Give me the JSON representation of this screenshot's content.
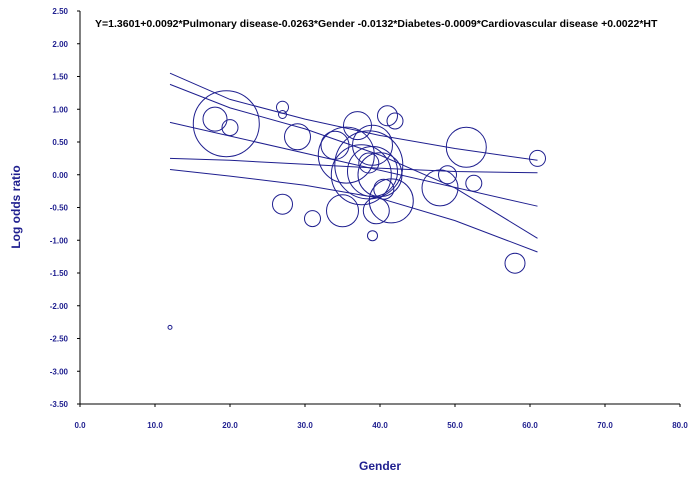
{
  "chart_data": {
    "type": "scatter",
    "title": "Y=1.3601+0.0092*Pulmonary disease-0.0263*Gender -0.0132*Diabetes-0.0009*Cardiovascular disease +0.0022*HT",
    "xlabel": "Gender",
    "ylabel": "Log odds ratio",
    "xlim": [
      0,
      80
    ],
    "ylim": [
      -3.5,
      2.5
    ],
    "x_ticks": [
      "0.0",
      "10.0",
      "20.0",
      "30.0",
      "40.0",
      "50.0",
      "60.0",
      "70.0",
      "80.0"
    ],
    "y_ticks": [
      "2.50",
      "2.00",
      "1.50",
      "1.00",
      "0.50",
      "0.00",
      "-0.50",
      "-1.00",
      "-1.50",
      "-2.00",
      "-2.50",
      "-3.00",
      "-3.50"
    ],
    "grid": false,
    "colors": {
      "marks": "#1f1f8f",
      "text": "#1f1f8f",
      "title": "#000000"
    },
    "points": [
      {
        "x": 19.5,
        "y": 0.78,
        "size": 33
      },
      {
        "x": 18.0,
        "y": 0.85,
        "size": 12
      },
      {
        "x": 20.0,
        "y": 0.72,
        "size": 8
      },
      {
        "x": 27.0,
        "y": 1.03,
        "size": 6
      },
      {
        "x": 27.0,
        "y": 0.92,
        "size": 4
      },
      {
        "x": 29.0,
        "y": 0.58,
        "size": 13
      },
      {
        "x": 27.0,
        "y": -0.45,
        "size": 10
      },
      {
        "x": 31.0,
        "y": -0.67,
        "size": 8
      },
      {
        "x": 34.0,
        "y": 0.45,
        "size": 14
      },
      {
        "x": 35.5,
        "y": 0.3,
        "size": 28
      },
      {
        "x": 35.0,
        "y": -0.55,
        "size": 16
      },
      {
        "x": 37.0,
        "y": 0.75,
        "size": 14
      },
      {
        "x": 37.5,
        "y": 0.0,
        "size": 30
      },
      {
        "x": 38.5,
        "y": 0.15,
        "size": 34
      },
      {
        "x": 39.0,
        "y": 0.05,
        "size": 25
      },
      {
        "x": 39.0,
        "y": 0.45,
        "size": 20
      },
      {
        "x": 40.0,
        "y": 0.0,
        "size": 22
      },
      {
        "x": 38.5,
        "y": 0.18,
        "size": 10
      },
      {
        "x": 39.5,
        "y": -0.55,
        "size": 13
      },
      {
        "x": 39.0,
        "y": -0.93,
        "size": 5
      },
      {
        "x": 41.0,
        "y": 0.9,
        "size": 10
      },
      {
        "x": 42.0,
        "y": 0.82,
        "size": 8
      },
      {
        "x": 41.5,
        "y": -0.4,
        "size": 22
      },
      {
        "x": 40.5,
        "y": -0.22,
        "size": 10
      },
      {
        "x": 48.0,
        "y": -0.2,
        "size": 18
      },
      {
        "x": 49.0,
        "y": 0.0,
        "size": 9
      },
      {
        "x": 51.5,
        "y": 0.42,
        "size": 20
      },
      {
        "x": 52.5,
        "y": -0.13,
        "size": 8
      },
      {
        "x": 58.0,
        "y": -1.35,
        "size": 10
      },
      {
        "x": 61.0,
        "y": 0.25,
        "size": 8
      },
      {
        "x": 12.0,
        "y": -2.33,
        "size": 2
      }
    ],
    "lines": [
      {
        "name": "upper-outer",
        "points": [
          [
            12,
            1.55
          ],
          [
            20,
            1.15
          ],
          [
            30,
            0.85
          ],
          [
            40,
            0.6
          ],
          [
            50,
            0.4
          ],
          [
            61,
            0.22
          ]
        ]
      },
      {
        "name": "upper-inner",
        "points": [
          [
            12,
            1.38
          ],
          [
            20,
            1.02
          ],
          [
            30,
            0.7
          ],
          [
            40,
            0.3
          ],
          [
            50,
            -0.2
          ],
          [
            61,
            -0.97
          ]
        ]
      },
      {
        "name": "regression",
        "points": [
          [
            12,
            0.8
          ],
          [
            61,
            -0.48
          ]
        ]
      },
      {
        "name": "lower-inner",
        "points": [
          [
            12,
            0.25
          ],
          [
            20,
            0.22
          ],
          [
            30,
            0.16
          ],
          [
            40,
            0.1
          ],
          [
            50,
            0.05
          ],
          [
            61,
            0.03
          ]
        ]
      },
      {
        "name": "lower-outer",
        "points": [
          [
            12,
            0.08
          ],
          [
            20,
            -0.02
          ],
          [
            30,
            -0.16
          ],
          [
            40,
            -0.36
          ],
          [
            50,
            -0.7
          ],
          [
            61,
            -1.18
          ]
        ]
      }
    ]
  }
}
